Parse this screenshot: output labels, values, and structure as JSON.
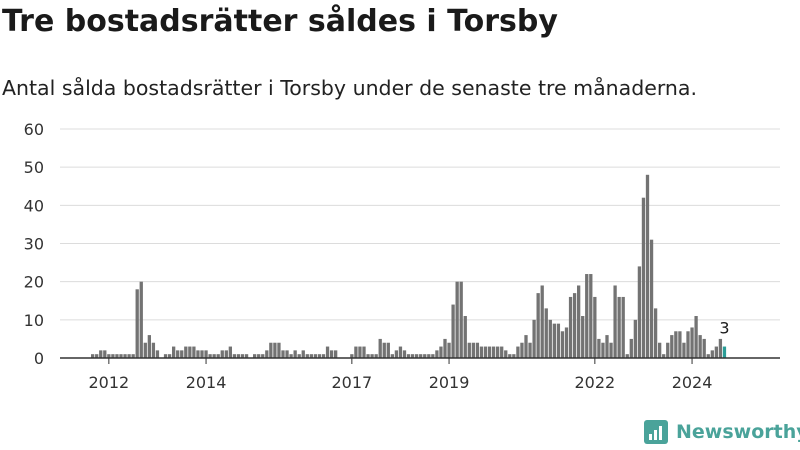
{
  "title": "Tre bostadsrätter såldes i Torsby",
  "subtitle": "Antal sålda bostadsrätter i Torsby under de senaste tre månaderna.",
  "brand": {
    "name": "Newsworthy",
    "color": "#4aa39a"
  },
  "chart_data": {
    "type": "bar",
    "title": "",
    "xlabel": "",
    "ylabel": "",
    "ylim": [
      0,
      60
    ],
    "yticks": [
      0,
      10,
      20,
      30,
      40,
      50,
      60
    ],
    "grid": true,
    "x_start": "2011-09",
    "x_tick_labels": [
      {
        "label": "2012",
        "month": "2012-01"
      },
      {
        "label": "2014",
        "month": "2014-01"
      },
      {
        "label": "2017",
        "month": "2017-01"
      },
      {
        "label": "2019",
        "month": "2019-01"
      },
      {
        "label": "2022",
        "month": "2022-01"
      },
      {
        "label": "2024",
        "month": "2024-01"
      }
    ],
    "bar_color": "#737373",
    "highlight_color": "#2a9d97",
    "highlight_label": "3",
    "series": [
      {
        "values": [
          1,
          1,
          2,
          2,
          1,
          1,
          1,
          1,
          1,
          1,
          1,
          18,
          20,
          4,
          6,
          4,
          2,
          0,
          1,
          1,
          3,
          2,
          2,
          3,
          3,
          3,
          2,
          2,
          2,
          1,
          1,
          1,
          2,
          2,
          3,
          1,
          1,
          1,
          1,
          0,
          1,
          1,
          1,
          2,
          4,
          4,
          4,
          2,
          2,
          1,
          2,
          1,
          2,
          1,
          1,
          1,
          1,
          1,
          3,
          2,
          2,
          0,
          0,
          0,
          1,
          3,
          3,
          3,
          1,
          1,
          1,
          5,
          4,
          4,
          1,
          2,
          3,
          2,
          1,
          1,
          1,
          1,
          1,
          1,
          1,
          2,
          3,
          5,
          4,
          14,
          20,
          20,
          11,
          4,
          4,
          4,
          3,
          3,
          3,
          3,
          3,
          3,
          2,
          1,
          1,
          3,
          4,
          6,
          4,
          10,
          17,
          19,
          13,
          10,
          9,
          9,
          7,
          8,
          16,
          17,
          19,
          11,
          22,
          22,
          16,
          5,
          4,
          6,
          4,
          19,
          16,
          16,
          1,
          5,
          10,
          24,
          42,
          48,
          31,
          13,
          4,
          1,
          4,
          6,
          7,
          7,
          4,
          7,
          8,
          11,
          6,
          5,
          1,
          2,
          3,
          5,
          3
        ]
      }
    ]
  }
}
